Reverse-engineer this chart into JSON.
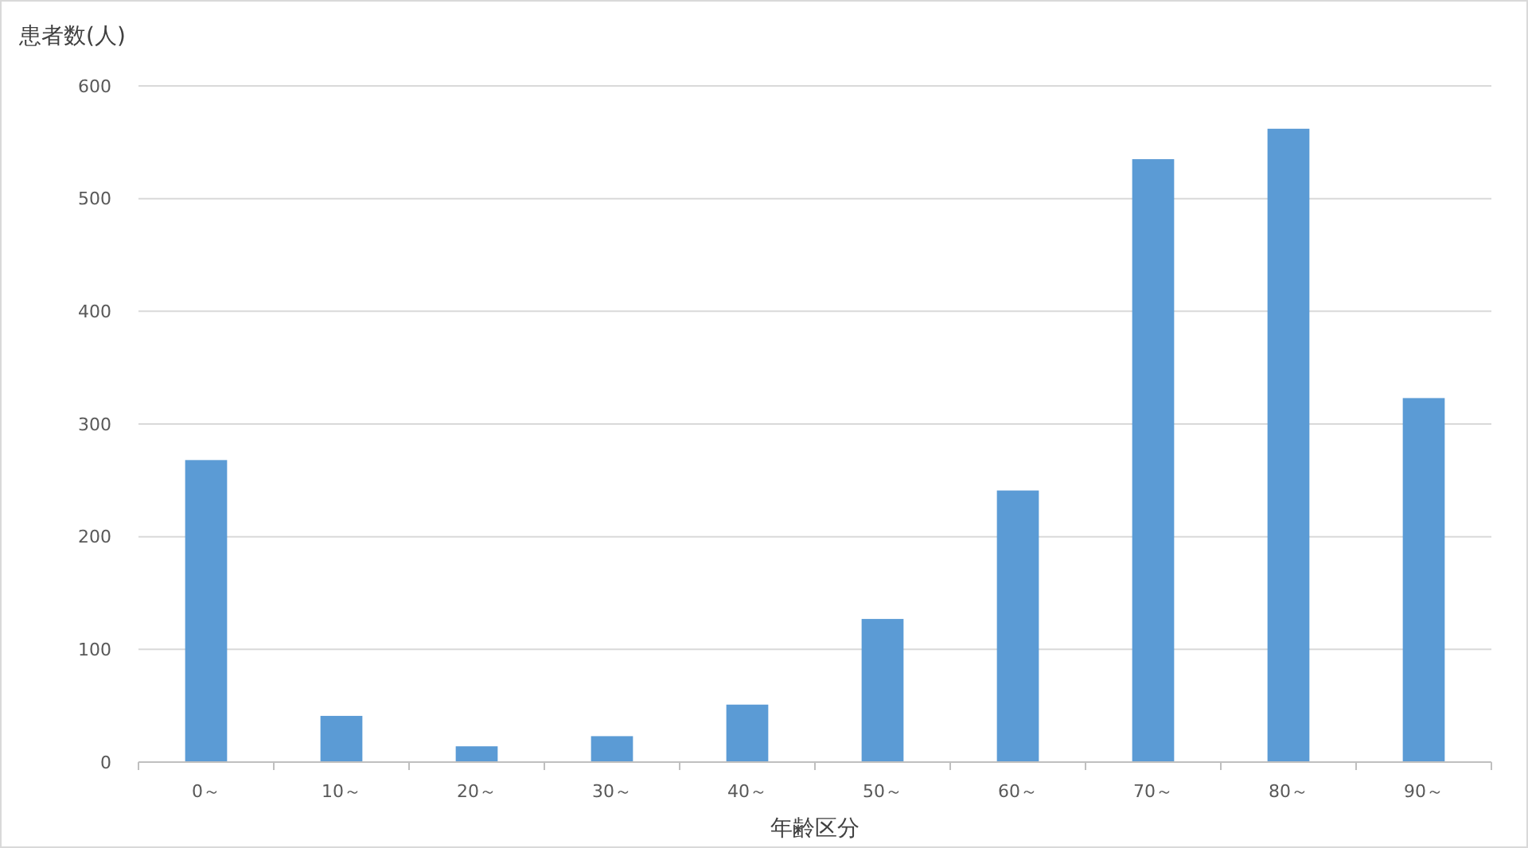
{
  "chart_data": {
    "type": "bar",
    "ylabel": "患者数(人)",
    "xlabel": "年齢区分",
    "categories": [
      "0～",
      "10～",
      "20～",
      "30～",
      "40～",
      "50～",
      "60～",
      "70～",
      "80～",
      "90～"
    ],
    "values": [
      268,
      41,
      14,
      23,
      51,
      127,
      241,
      535,
      562,
      323
    ],
    "color": "#5b9bd5",
    "ylim": [
      0,
      600
    ],
    "yticks": [
      0,
      100,
      200,
      300,
      400,
      500,
      600
    ],
    "grid": "y"
  }
}
